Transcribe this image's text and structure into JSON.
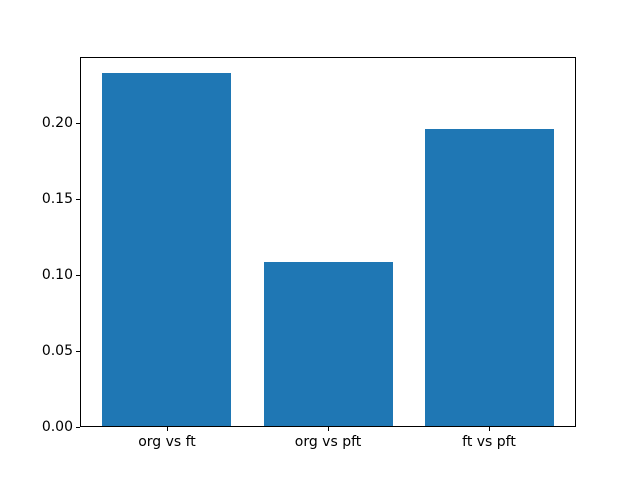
{
  "chart_data": {
    "type": "bar",
    "title": "",
    "xlabel": "",
    "ylabel": "",
    "categories": [
      "org vs ft",
      "org vs pft",
      "ft vs pft"
    ],
    "values": [
      0.2326,
      0.1088,
      0.1963
    ],
    "yticks": [
      0.0,
      0.05,
      0.1,
      0.15,
      0.2
    ],
    "ytick_labels": [
      "0.00",
      "0.05",
      "0.10",
      "0.15",
      "0.20"
    ],
    "ylim": [
      0,
      0.2434
    ],
    "grid": false,
    "legend": null,
    "bar_color": "#1f77b4",
    "background_color": "#ffffff",
    "text_color": "#000000",
    "frame_color": "#000000"
  }
}
